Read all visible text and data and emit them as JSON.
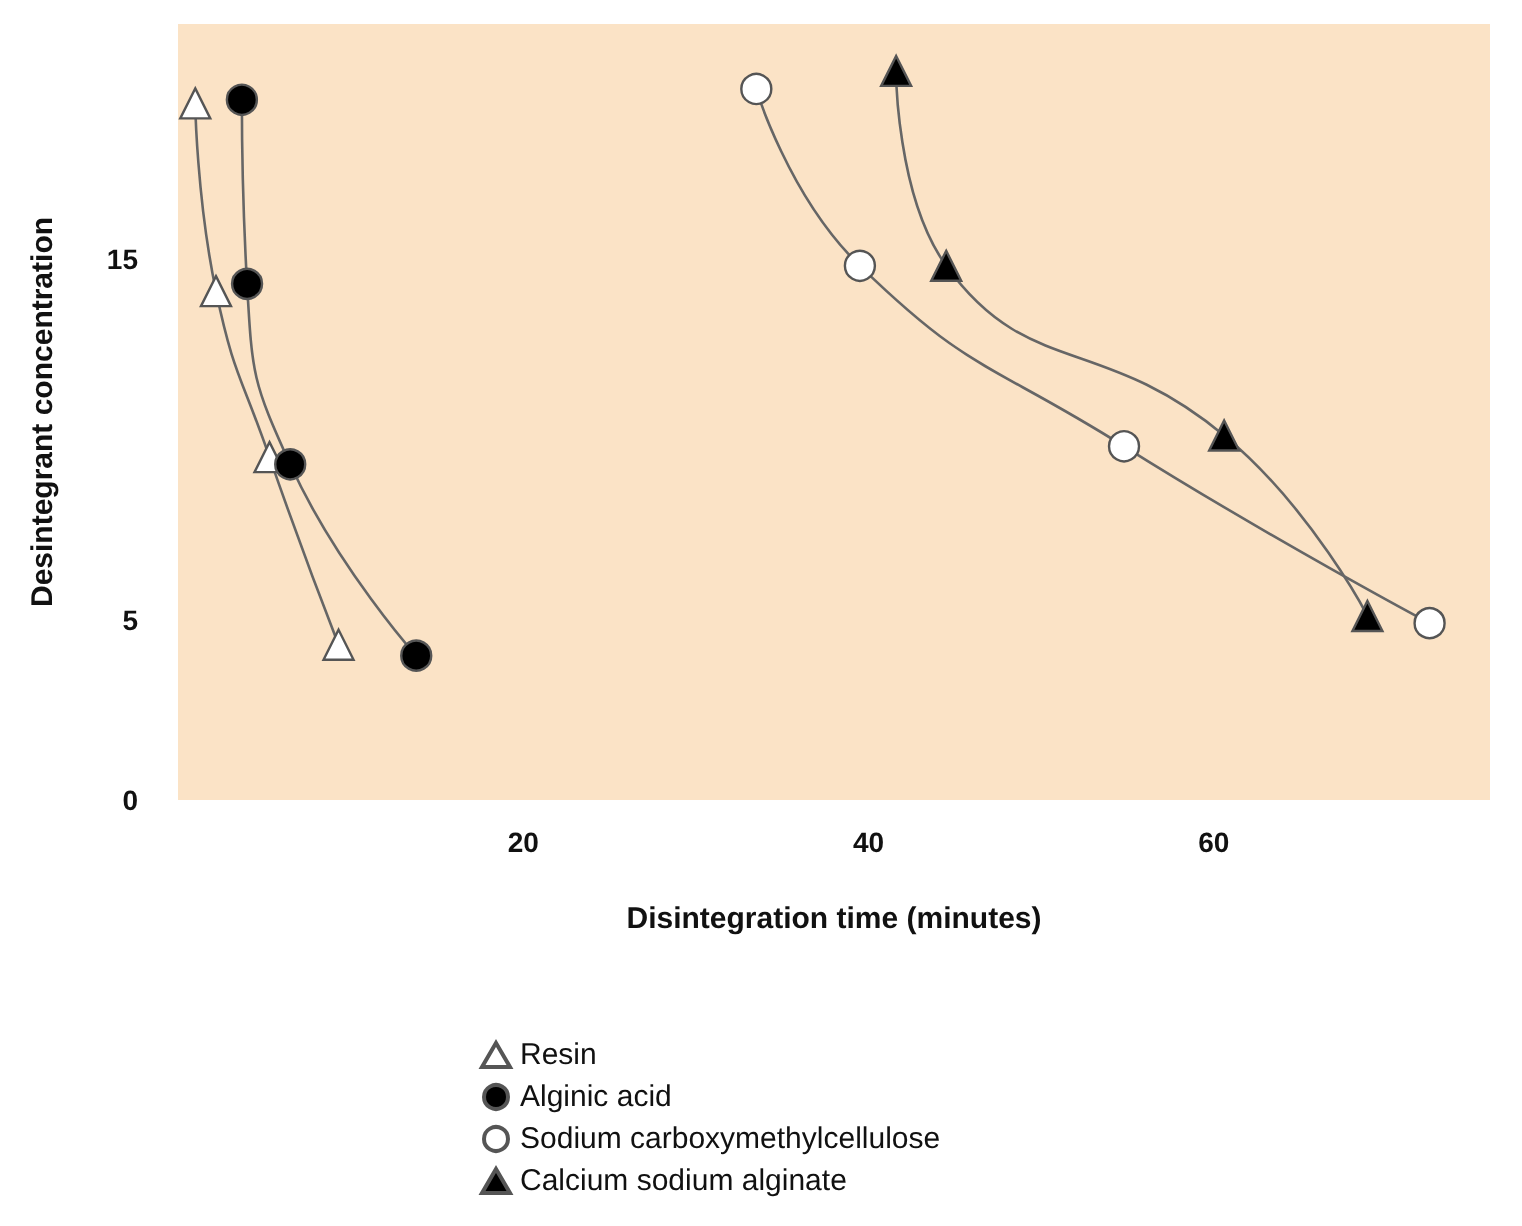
{
  "chart_data": {
    "type": "line",
    "xlabel": "Disintegration time (minutes)",
    "ylabel": "Desintegrant concentration",
    "xlim": [
      0,
      76
    ],
    "ylim": [
      0,
      21.5
    ],
    "xticks": [
      20,
      40,
      60
    ],
    "yticks": [
      0,
      5,
      15
    ],
    "grid": false,
    "legend": "bottom",
    "line_style": "solid",
    "series": [
      {
        "name": "Resin",
        "color": "#ffffff",
        "marker": "triangle",
        "x": [
          1.0,
          2.2,
          5.3,
          9.3
        ],
        "values": [
          19.3,
          14.1,
          9.5,
          4.3
        ]
      },
      {
        "name": "Alginic acid",
        "color": "#000000",
        "marker": "circle",
        "x": [
          3.7,
          4.0,
          6.5,
          13.8
        ],
        "values": [
          19.4,
          14.3,
          9.3,
          4.0
        ]
      },
      {
        "name": "Sodium carboxymethylcellulose",
        "color": "#ffffff",
        "marker": "circle",
        "x": [
          33.5,
          39.5,
          54.8,
          72.5
        ],
        "values": [
          19.7,
          14.8,
          9.8,
          4.9
        ]
      },
      {
        "name": "Calcium sodium alginate",
        "color": "#000000",
        "marker": "triangle",
        "x": [
          41.6,
          44.5,
          60.6,
          68.9
        ],
        "values": [
          20.2,
          14.8,
          10.1,
          5.1
        ]
      }
    ]
  }
}
